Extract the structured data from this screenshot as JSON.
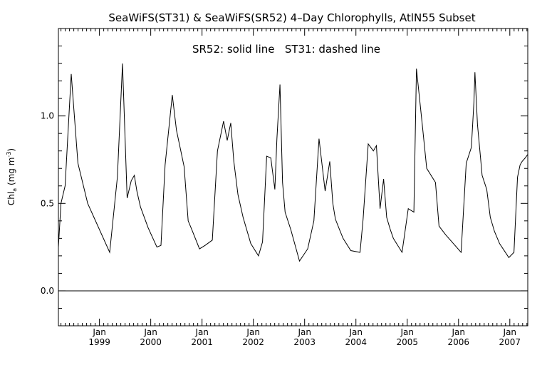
{
  "chart_data": {
    "type": "line",
    "title": "SeaWiFS(ST31) & SeaWiFS(SR52) 4–Day Chlorophylls, AtlN55 Subset",
    "annotation": "SR52: solid line   ST31: dashed line",
    "ylabel": {
      "main": "Chl",
      "subscript": "a",
      "units_open": " (mg m",
      "superscript": "-3",
      "units_close": ")"
    },
    "ylim": [
      -0.2,
      1.5
    ],
    "xlim": [
      1998.2,
      2007.35
    ],
    "yticks": [
      {
        "value": 0.0,
        "label": "0.0"
      },
      {
        "value": 0.5,
        "label": "0.5"
      },
      {
        "value": 1.0,
        "label": "1.0"
      }
    ],
    "xticks": [
      {
        "value": 1999.0,
        "month": "Jan",
        "year": "1999"
      },
      {
        "value": 2000.0,
        "month": "Jan",
        "year": "2000"
      },
      {
        "value": 2001.0,
        "month": "Jan",
        "year": "2001"
      },
      {
        "value": 2002.0,
        "month": "Jan",
        "year": "2002"
      },
      {
        "value": 2003.0,
        "month": "Jan",
        "year": "2003"
      },
      {
        "value": 2004.0,
        "month": "Jan",
        "year": "2004"
      },
      {
        "value": 2005.0,
        "month": "Jan",
        "year": "2005"
      },
      {
        "value": 2006.0,
        "month": "Jan",
        "year": "2006"
      },
      {
        "value": 2007.0,
        "month": "Jan",
        "year": "2007"
      }
    ],
    "reference_line": 0.0,
    "series": [
      {
        "x": [
          1998.2,
          1998.25,
          1998.33,
          1998.45,
          1998.58,
          1998.77,
          1999.2,
          1999.35,
          1999.45,
          1999.54,
          1999.62,
          1999.68,
          1999.73,
          1999.8,
          1999.95,
          2000.12,
          2000.2,
          2000.28,
          2000.42,
          2000.5,
          2000.65,
          2000.73,
          2000.8,
          2000.95,
          2001.06,
          2001.2,
          2001.3,
          2001.42,
          2001.49,
          2001.56,
          2001.62,
          2001.7,
          2001.8,
          2001.95,
          2002.1,
          2002.18,
          2002.26,
          2002.34,
          2002.42,
          2002.46,
          2002.52,
          2002.57,
          2002.62,
          2002.73,
          2002.9,
          2003.06,
          2003.18,
          2003.28,
          2003.4,
          2003.49,
          2003.55,
          2003.6,
          2003.68,
          2003.75,
          2003.9,
          2004.08,
          2004.14,
          2004.24,
          2004.34,
          2004.4,
          2004.47,
          2004.54,
          2004.6,
          2004.67,
          2004.73,
          2004.9,
          2005.02,
          2005.13,
          2005.18,
          2005.3,
          2005.38,
          2005.55,
          2005.62,
          2005.75,
          2005.9,
          2006.05,
          2006.15,
          2006.25,
          2006.3,
          2006.32,
          2006.37,
          2006.43,
          2006.46,
          2006.55,
          2006.62,
          2006.7,
          2006.8,
          2006.98,
          2007.08,
          2007.15,
          2007.2,
          2007.24,
          2007.3,
          2007.35
        ],
        "values": [
          0.25,
          0.5,
          0.6,
          1.24,
          0.73,
          0.5,
          0.22,
          0.65,
          1.3,
          0.53,
          0.63,
          0.66,
          0.57,
          0.48,
          0.36,
          0.25,
          0.26,
          0.72,
          1.12,
          0.92,
          0.71,
          0.4,
          0.35,
          0.24,
          0.26,
          0.29,
          0.8,
          0.97,
          0.86,
          0.96,
          0.74,
          0.55,
          0.42,
          0.27,
          0.2,
          0.28,
          0.77,
          0.76,
          0.58,
          0.87,
          1.18,
          0.62,
          0.45,
          0.35,
          0.17,
          0.24,
          0.4,
          0.87,
          0.57,
          0.74,
          0.5,
          0.41,
          0.35,
          0.3,
          0.23,
          0.22,
          0.41,
          0.84,
          0.8,
          0.83,
          0.47,
          0.64,
          0.42,
          0.35,
          0.3,
          0.22,
          0.47,
          0.45,
          1.27,
          0.93,
          0.7,
          0.62,
          0.37,
          0.32,
          0.27,
          0.22,
          0.73,
          0.82,
          1.08,
          1.25,
          0.95,
          0.76,
          0.66,
          0.58,
          0.42,
          0.34,
          0.27,
          0.19,
          0.22,
          0.65,
          0.72,
          0.74,
          0.76,
          0.78
        ]
      }
    ]
  }
}
